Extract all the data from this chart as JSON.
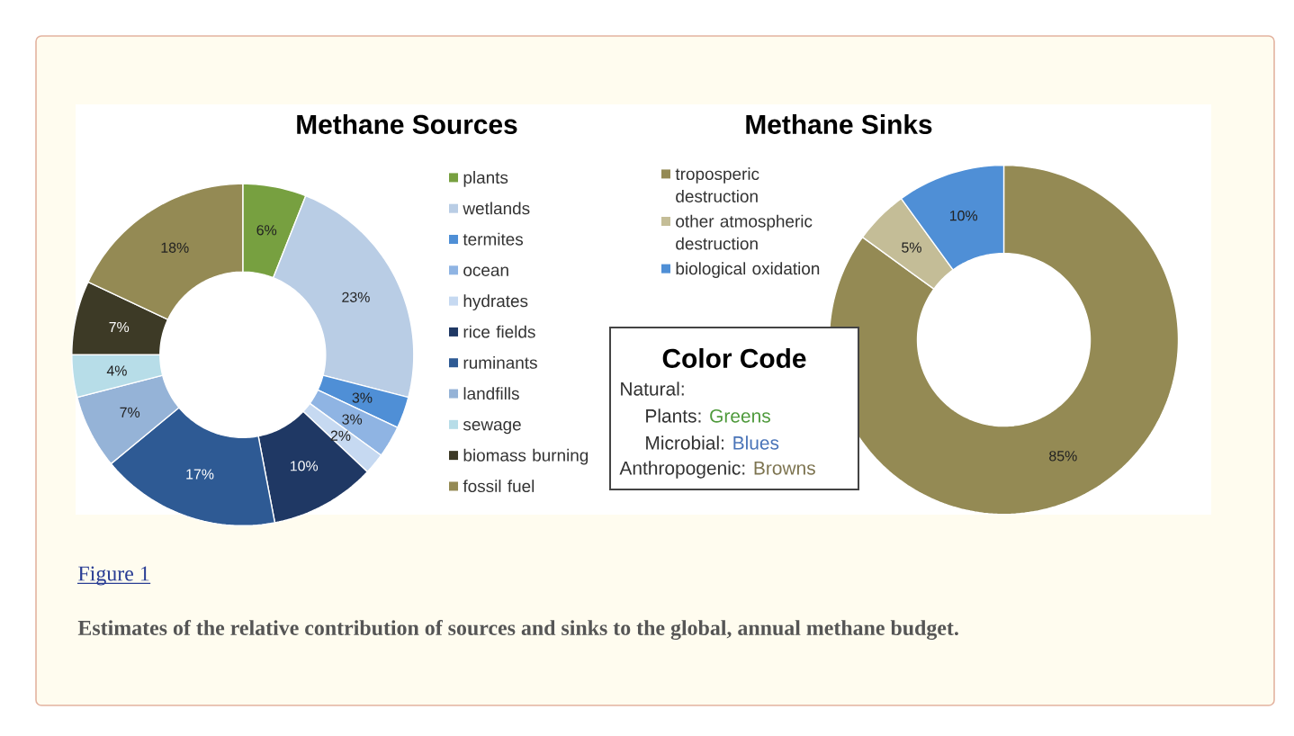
{
  "chart_data": [
    {
      "type": "donut",
      "title": "Methane Sources",
      "categories": [
        "plants",
        "wetlands",
        "termites",
        "ocean",
        "hydrates",
        "rice fields",
        "ruminants",
        "landfills",
        "sewage",
        "biomass burning",
        "fossil fuel"
      ],
      "values": [
        6,
        23,
        3,
        3,
        2,
        10,
        17,
        7,
        4,
        7,
        18
      ],
      "value_labels": [
        "6%",
        "23%",
        "3%",
        "3%",
        "2%",
        "10%",
        "17%",
        "7%",
        "4%",
        "7%",
        "18%"
      ],
      "colors": [
        "#77a040",
        "#b9cde5",
        "#4f8fd6",
        "#8fb4e3",
        "#c6d9f1",
        "#1f3864",
        "#2e5a94",
        "#95b3d7",
        "#b7dde8",
        "#3d3a26",
        "#948a54"
      ],
      "legend": "right",
      "annotations": [
        "Figure 1",
        "Estimates of the relative contribution of sources and sinks to the global, annual methane budget."
      ]
    },
    {
      "type": "donut",
      "title": "Methane Sinks",
      "categories": [
        "troposperic destruction",
        "other atmospheric destruction",
        "biological oxidation"
      ],
      "values": [
        85,
        5,
        10
      ],
      "value_labels": [
        "85%",
        "5%",
        "10%"
      ],
      "colors": [
        "#948a54",
        "#c4bd97",
        "#4f8fd6"
      ],
      "legend": "left"
    },
    {
      "type": "other",
      "title": "Color Code",
      "annotations": [
        "Natural:",
        "Plants:",
        "Greens",
        "Microbial:",
        "Blues",
        "Anthropogenic:",
        "Browns"
      ]
    }
  ]
}
